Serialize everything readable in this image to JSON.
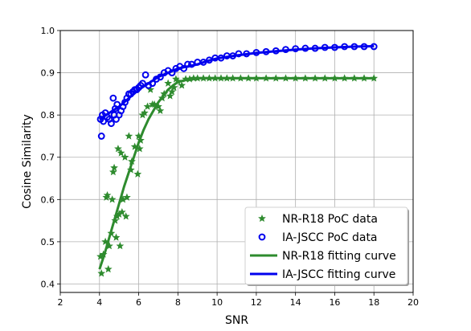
{
  "chart_data": {
    "type": "scatter",
    "title": "",
    "xlabel": "SNR",
    "ylabel": "Cosine Similarity",
    "xlim": [
      2,
      20
    ],
    "ylim": [
      0.38,
      1.0
    ],
    "xticks": [
      "2",
      "4",
      "6",
      "8",
      "10",
      "12",
      "14",
      "16",
      "18",
      "20"
    ],
    "yticks": [
      "0.4",
      "0.5",
      "0.6",
      "0.7",
      "0.8",
      "0.9",
      "1.0"
    ],
    "grid": true,
    "legend_position": "lower-right",
    "series": [
      {
        "name": "NR-R18 PoC data",
        "kind": "scatter",
        "marker": "star",
        "color": "#2e8b2e",
        "points": [
          [
            4.05,
            0.465
          ],
          [
            4.1,
            0.425
          ],
          [
            4.2,
            0.47
          ],
          [
            4.3,
            0.5
          ],
          [
            4.35,
            0.605
          ],
          [
            4.4,
            0.61
          ],
          [
            4.45,
            0.435
          ],
          [
            4.5,
            0.49
          ],
          [
            4.6,
            0.52
          ],
          [
            4.65,
            0.6
          ],
          [
            4.7,
            0.665
          ],
          [
            4.75,
            0.675
          ],
          [
            4.8,
            0.55
          ],
          [
            4.85,
            0.51
          ],
          [
            4.9,
            0.56
          ],
          [
            4.95,
            0.72
          ],
          [
            5.0,
            0.565
          ],
          [
            5.05,
            0.49
          ],
          [
            5.1,
            0.71
          ],
          [
            5.15,
            0.57
          ],
          [
            5.2,
            0.6
          ],
          [
            5.3,
            0.7
          ],
          [
            5.35,
            0.56
          ],
          [
            5.4,
            0.605
          ],
          [
            5.5,
            0.75
          ],
          [
            5.6,
            0.67
          ],
          [
            5.65,
            0.69
          ],
          [
            5.8,
            0.725
          ],
          [
            5.95,
            0.66
          ],
          [
            6.0,
            0.75
          ],
          [
            6.05,
            0.72
          ],
          [
            6.1,
            0.74
          ],
          [
            6.2,
            0.8
          ],
          [
            6.3,
            0.805
          ],
          [
            6.45,
            0.82
          ],
          [
            6.6,
            0.86
          ],
          [
            6.7,
            0.825
          ],
          [
            6.8,
            0.825
          ],
          [
            7.0,
            0.82
          ],
          [
            7.1,
            0.81
          ],
          [
            7.2,
            0.84
          ],
          [
            7.3,
            0.85
          ],
          [
            7.5,
            0.875
          ],
          [
            7.6,
            0.845
          ],
          [
            7.7,
            0.855
          ],
          [
            7.8,
            0.865
          ],
          [
            7.9,
            0.885
          ],
          [
            8.0,
            0.88
          ],
          [
            8.2,
            0.87
          ],
          [
            8.4,
            0.885
          ],
          [
            8.6,
            0.885
          ],
          [
            8.8,
            0.887
          ],
          [
            9.0,
            0.887
          ],
          [
            9.3,
            0.887
          ],
          [
            9.6,
            0.887
          ],
          [
            9.9,
            0.887
          ],
          [
            10.2,
            0.887
          ],
          [
            10.5,
            0.887
          ],
          [
            10.8,
            0.887
          ],
          [
            11.2,
            0.887
          ],
          [
            11.6,
            0.887
          ],
          [
            12.0,
            0.887
          ],
          [
            12.5,
            0.887
          ],
          [
            13.0,
            0.887
          ],
          [
            13.5,
            0.887
          ],
          [
            14.0,
            0.887
          ],
          [
            14.5,
            0.887
          ],
          [
            15.0,
            0.887
          ],
          [
            15.5,
            0.887
          ],
          [
            16.0,
            0.887
          ],
          [
            16.5,
            0.887
          ],
          [
            17.0,
            0.887
          ],
          [
            17.5,
            0.887
          ],
          [
            18.0,
            0.887
          ]
        ]
      },
      {
        "name": "IA-JSCC PoC data",
        "kind": "scatter",
        "marker": "circle",
        "color": "#0000ee",
        "points": [
          [
            4.05,
            0.79
          ],
          [
            4.1,
            0.75
          ],
          [
            4.15,
            0.8
          ],
          [
            4.2,
            0.785
          ],
          [
            4.3,
            0.805
          ],
          [
            4.4,
            0.795
          ],
          [
            4.5,
            0.79
          ],
          [
            4.6,
            0.78
          ],
          [
            4.7,
            0.84
          ],
          [
            4.75,
            0.8
          ],
          [
            4.8,
            0.815
          ],
          [
            4.85,
            0.79
          ],
          [
            4.9,
            0.825
          ],
          [
            5.0,
            0.8
          ],
          [
            5.1,
            0.81
          ],
          [
            5.2,
            0.82
          ],
          [
            5.3,
            0.83
          ],
          [
            5.4,
            0.84
          ],
          [
            5.5,
            0.85
          ],
          [
            5.6,
            0.85
          ],
          [
            5.7,
            0.855
          ],
          [
            5.8,
            0.86
          ],
          [
            5.9,
            0.86
          ],
          [
            6.0,
            0.865
          ],
          [
            6.1,
            0.87
          ],
          [
            6.2,
            0.875
          ],
          [
            6.35,
            0.895
          ],
          [
            6.5,
            0.87
          ],
          [
            6.7,
            0.875
          ],
          [
            6.9,
            0.885
          ],
          [
            7.1,
            0.89
          ],
          [
            7.3,
            0.9
          ],
          [
            7.5,
            0.905
          ],
          [
            7.7,
            0.9
          ],
          [
            7.9,
            0.91
          ],
          [
            8.1,
            0.915
          ],
          [
            8.3,
            0.91
          ],
          [
            8.5,
            0.92
          ],
          [
            8.7,
            0.92
          ],
          [
            9.0,
            0.925
          ],
          [
            9.3,
            0.925
          ],
          [
            9.6,
            0.93
          ],
          [
            9.9,
            0.935
          ],
          [
            10.2,
            0.935
          ],
          [
            10.5,
            0.94
          ],
          [
            10.8,
            0.94
          ],
          [
            11.1,
            0.945
          ],
          [
            11.5,
            0.945
          ],
          [
            12.0,
            0.948
          ],
          [
            12.5,
            0.95
          ],
          [
            13.0,
            0.952
          ],
          [
            13.5,
            0.955
          ],
          [
            14.0,
            0.957
          ],
          [
            14.5,
            0.958
          ],
          [
            15.0,
            0.958
          ],
          [
            15.5,
            0.96
          ],
          [
            16.0,
            0.96
          ],
          [
            16.5,
            0.962
          ],
          [
            17.0,
            0.962
          ],
          [
            17.5,
            0.962
          ],
          [
            18.0,
            0.962
          ]
        ]
      },
      {
        "name": "NR-R18 fitting curve",
        "kind": "line",
        "color": "#2e8b2e",
        "points": [
          [
            4.0,
            0.435
          ],
          [
            4.25,
            0.47
          ],
          [
            4.5,
            0.51
          ],
          [
            4.75,
            0.55
          ],
          [
            5.0,
            0.59
          ],
          [
            5.25,
            0.63
          ],
          [
            5.5,
            0.665
          ],
          [
            5.75,
            0.7
          ],
          [
            6.0,
            0.735
          ],
          [
            6.25,
            0.765
          ],
          [
            6.5,
            0.79
          ],
          [
            6.75,
            0.81
          ],
          [
            7.0,
            0.83
          ],
          [
            7.25,
            0.845
          ],
          [
            7.5,
            0.86
          ],
          [
            7.75,
            0.87
          ],
          [
            8.0,
            0.878
          ],
          [
            8.5,
            0.884
          ],
          [
            9.0,
            0.887
          ],
          [
            10.0,
            0.887
          ],
          [
            12.0,
            0.887
          ],
          [
            14.0,
            0.887
          ],
          [
            16.0,
            0.887
          ],
          [
            18.0,
            0.887
          ]
        ]
      },
      {
        "name": "IA-JSCC fitting curve",
        "kind": "line",
        "color": "#0000ee",
        "points": [
          [
            4.0,
            0.79
          ],
          [
            4.5,
            0.805
          ],
          [
            5.0,
            0.82
          ],
          [
            5.5,
            0.84
          ],
          [
            6.0,
            0.86
          ],
          [
            6.5,
            0.875
          ],
          [
            7.0,
            0.89
          ],
          [
            7.5,
            0.9
          ],
          [
            8.0,
            0.91
          ],
          [
            8.5,
            0.915
          ],
          [
            9.0,
            0.92
          ],
          [
            9.5,
            0.928
          ],
          [
            10.0,
            0.934
          ],
          [
            11.0,
            0.941
          ],
          [
            12.0,
            0.947
          ],
          [
            13.0,
            0.951
          ],
          [
            14.0,
            0.955
          ],
          [
            15.0,
            0.958
          ],
          [
            16.0,
            0.96
          ],
          [
            17.0,
            0.962
          ],
          [
            18.0,
            0.963
          ]
        ]
      }
    ]
  }
}
